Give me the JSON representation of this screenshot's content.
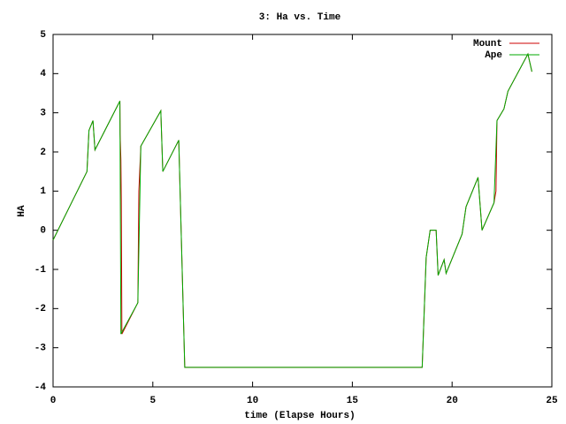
{
  "chart_data": {
    "type": "line",
    "title": "3: Ha vs. Time",
    "x_label": "time (Elapse Hours)",
    "y_label": "HA",
    "xlim": [
      0,
      25
    ],
    "xticks": [
      0,
      5,
      10,
      15,
      20,
      25
    ],
    "ylim": [
      -4,
      5
    ],
    "yticks": [
      -4,
      -3,
      -2,
      -1,
      0,
      1,
      2,
      3,
      4,
      5
    ],
    "legend": "top-right",
    "series": [
      {
        "name": "Mount",
        "color": "#cc0000",
        "x": [
          0,
          1.7,
          1.8,
          2.0,
          2.1,
          3.35,
          3.36,
          3.4,
          3.42,
          3.45,
          4.25,
          4.3,
          4.4,
          5.4,
          5.5,
          6.3,
          6.6,
          18.5,
          18.7,
          18.9,
          19.2,
          19.3,
          19.6,
          19.7,
          20.5,
          20.7,
          21.3,
          21.5,
          22.1,
          22.2,
          22.25,
          22.6,
          22.8,
          23.8,
          24.0
        ],
        "values": [
          -0.25,
          1.5,
          2.55,
          2.8,
          2.05,
          3.3,
          2.45,
          1.8,
          0.8,
          -2.65,
          -1.85,
          1.0,
          2.15,
          3.05,
          1.5,
          2.3,
          -3.5,
          -3.5,
          -0.7,
          0,
          0,
          -1.15,
          -0.75,
          -1.1,
          -0.1,
          0.6,
          1.35,
          0,
          0.7,
          1.0,
          2.8,
          3.1,
          3.55,
          4.5,
          4.05
        ]
      },
      {
        "name": "Ape",
        "color": "#00aa00",
        "x": [
          0,
          1.7,
          1.8,
          2.0,
          2.1,
          3.35,
          3.4,
          4.25,
          4.4,
          5.4,
          5.5,
          6.3,
          6.6,
          18.5,
          18.7,
          18.9,
          19.2,
          19.3,
          19.6,
          19.7,
          20.5,
          20.7,
          21.3,
          21.5,
          22.1,
          22.25,
          22.6,
          22.8,
          23.8,
          24.0
        ],
        "values": [
          -0.25,
          1.5,
          2.55,
          2.8,
          2.05,
          3.3,
          -2.65,
          -1.85,
          2.15,
          3.05,
          1.5,
          2.3,
          -3.5,
          -3.5,
          -0.7,
          0,
          0,
          -1.15,
          -0.75,
          -1.1,
          -0.1,
          0.6,
          1.35,
          0,
          0.7,
          2.8,
          3.1,
          3.55,
          4.5,
          4.05
        ]
      }
    ]
  }
}
